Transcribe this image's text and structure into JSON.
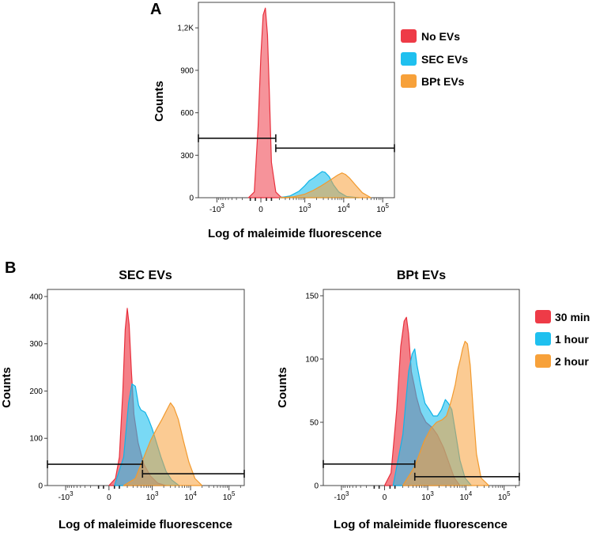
{
  "panel_labels": [
    "A",
    "B"
  ],
  "legend_A": [
    {
      "label": "No EVs",
      "color": "#ee3b47"
    },
    {
      "label": "SEC EVs",
      "color": "#1fc0ef"
    },
    {
      "label": "BPt EVs",
      "color": "#f7a13a"
    }
  ],
  "legend_B": [
    {
      "label": "30 min",
      "color": "#ee3b47"
    },
    {
      "label": "1 hour",
      "color": "#1fc0ef"
    },
    {
      "label": "2 hour",
      "color": "#f7a13a"
    }
  ],
  "chart_data": [
    {
      "id": "A",
      "type": "area",
      "title": "",
      "xlabel": "Log of maleimide fluorescence",
      "ylabel": "Counts",
      "x_scale": "biexponential",
      "xlim": [
        -3000,
        200000
      ],
      "ylim": [
        0,
        1380
      ],
      "y_ticks": [
        {
          "v": 0,
          "label": "0"
        },
        {
          "v": 300,
          "label": "300"
        },
        {
          "v": 600,
          "label": "600"
        },
        {
          "v": 900,
          "label": "900"
        },
        {
          "v": 1200,
          "label": "1,2K"
        }
      ],
      "x_ticks": [
        {
          "v": -1000,
          "label": "-10",
          "exp": "3"
        },
        {
          "v": 0,
          "label": "0",
          "exp": ""
        },
        {
          "v": 1000,
          "label": "10",
          "exp": "3"
        },
        {
          "v": 10000,
          "label": "10",
          "exp": "4"
        },
        {
          "v": 100000,
          "label": "10",
          "exp": "5"
        }
      ],
      "gates": [
        {
          "from": -3000,
          "to": 150,
          "y": 420
        },
        {
          "from": 150,
          "to": 200000,
          "y": 350
        }
      ],
      "series": [
        {
          "name": "No EVs",
          "x": [
            -120,
            -60,
            -25,
            0,
            20,
            40,
            60,
            80,
            100,
            150,
            220,
            320
          ],
          "y": [
            0,
            40,
            500,
            1000,
            1290,
            1340,
            1150,
            700,
            250,
            40,
            5,
            0
          ]
        },
        {
          "name": "SEC EVs",
          "x": [
            200,
            400,
            700,
            1000,
            1300,
            1700,
            2200,
            2800,
            3300,
            4200,
            5500,
            7500,
            12000,
            25000
          ],
          "y": [
            0,
            12,
            45,
            85,
            120,
            140,
            165,
            185,
            180,
            150,
            90,
            40,
            8,
            0
          ]
        },
        {
          "name": "BPt EVs",
          "x": [
            200,
            500,
            1000,
            1600,
            2500,
            4000,
            5500,
            7000,
            9000,
            11000,
            14000,
            20000,
            30000,
            50000
          ],
          "y": [
            0,
            6,
            25,
            50,
            80,
            115,
            140,
            160,
            175,
            165,
            140,
            90,
            35,
            0
          ]
        }
      ]
    },
    {
      "id": "B-SEC",
      "type": "area",
      "title": "SEC EVs",
      "xlabel": "Log of maleimide fluorescence",
      "ylabel": "Counts",
      "x_scale": "biexponential",
      "xlim": [
        -3000,
        250000
      ],
      "ylim": [
        0,
        415
      ],
      "y_ticks": [
        {
          "v": 0,
          "label": "0"
        },
        {
          "v": 100,
          "label": "100"
        },
        {
          "v": 200,
          "label": "200"
        },
        {
          "v": 300,
          "label": "300"
        },
        {
          "v": 400,
          "label": "400"
        }
      ],
      "x_ticks": [
        {
          "v": -1000,
          "label": "-10",
          "exp": "3"
        },
        {
          "v": 0,
          "label": "0",
          "exp": ""
        },
        {
          "v": 1000,
          "label": "10",
          "exp": "3"
        },
        {
          "v": 10000,
          "label": "10",
          "exp": "4"
        },
        {
          "v": 100000,
          "label": "10",
          "exp": "5"
        }
      ],
      "gates": [
        {
          "from": -3000,
          "to": 550,
          "y": 45
        },
        {
          "from": 550,
          "to": 250000,
          "y": 25
        }
      ],
      "series": [
        {
          "name": "30 min",
          "x": [
            0,
            60,
            100,
            140,
            170,
            200,
            230,
            270,
            320,
            420,
            600,
            900,
            1400,
            2300
          ],
          "y": [
            0,
            15,
            60,
            200,
            330,
            375,
            340,
            240,
            150,
            90,
            45,
            20,
            5,
            0
          ]
        },
        {
          "name": "1 hour",
          "x": [
            50,
            150,
            220,
            280,
            350,
            430,
            500,
            650,
            800,
            1000,
            1300,
            1700,
            2300,
            3200,
            5000
          ],
          "y": [
            0,
            60,
            175,
            215,
            210,
            170,
            160,
            155,
            140,
            120,
            90,
            60,
            30,
            12,
            0
          ]
        },
        {
          "name": "2 hour",
          "x": [
            150,
            350,
            600,
            900,
            1300,
            1800,
            2400,
            3000,
            3700,
            4800,
            6500,
            9000,
            13000,
            20000
          ],
          "y": [
            0,
            15,
            60,
            95,
            120,
            140,
            160,
            175,
            165,
            140,
            95,
            50,
            15,
            0
          ]
        }
      ]
    },
    {
      "id": "B-BPt",
      "type": "area",
      "title": "BPt EVs",
      "xlabel": "Log of maleimide fluorescence",
      "ylabel": "Counts",
      "x_scale": "biexponential",
      "xlim": [
        -3000,
        250000
      ],
      "ylim": [
        0,
        155
      ],
      "y_ticks": [
        {
          "v": 0,
          "label": "0"
        },
        {
          "v": 50,
          "label": "50"
        },
        {
          "v": 100,
          "label": "100"
        },
        {
          "v": 150,
          "label": "150"
        }
      ],
      "x_ticks": [
        {
          "v": -1000,
          "label": "-10",
          "exp": "3"
        },
        {
          "v": 0,
          "label": "0",
          "exp": ""
        },
        {
          "v": 1000,
          "label": "10",
          "exp": "3"
        },
        {
          "v": 10000,
          "label": "10",
          "exp": "4"
        },
        {
          "v": 100000,
          "label": "10",
          "exp": "5"
        }
      ],
      "gates": [
        {
          "from": -3000,
          "to": 450,
          "y": 17
        },
        {
          "from": 450,
          "to": 250000,
          "y": 7
        }
      ],
      "series": [
        {
          "name": "30 min",
          "x": [
            0,
            60,
            120,
            170,
            220,
            260,
            300,
            360,
            430,
            500,
            650,
            900,
            1300,
            1800,
            2600,
            3600,
            5000,
            7000
          ],
          "y": [
            0,
            10,
            60,
            110,
            130,
            133,
            120,
            90,
            80,
            70,
            58,
            50,
            46,
            40,
            30,
            18,
            6,
            0
          ]
        },
        {
          "name": "1 hour",
          "x": [
            80,
            200,
            300,
            380,
            450,
            520,
            650,
            850,
            1100,
            1400,
            1800,
            2300,
            2900,
            3500,
            4300,
            5500,
            7000,
            9500,
            14000
          ],
          "y": [
            0,
            40,
            90,
            104,
            108,
            95,
            80,
            65,
            60,
            55,
            55,
            60,
            68,
            65,
            60,
            40,
            20,
            6,
            0
          ]
        },
        {
          "name": "2 hour",
          "x": [
            200,
            450,
            800,
            1200,
            1700,
            2400,
            3100,
            3700,
            4400,
            5300,
            6200,
            7200,
            8200,
            9500,
            11000,
            13000,
            15500,
            19000,
            25000,
            40000
          ],
          "y": [
            0,
            15,
            35,
            45,
            50,
            52,
            55,
            62,
            70,
            80,
            92,
            100,
            108,
            114,
            112,
            95,
            60,
            25,
            6,
            0
          ]
        }
      ]
    }
  ]
}
